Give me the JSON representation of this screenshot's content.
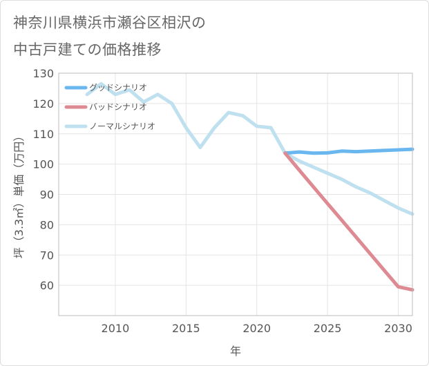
{
  "title_lines": [
    "神奈川県横浜市瀬谷区相沢の",
    "中古戸建ての価格推移"
  ],
  "chart_data": {
    "type": "line",
    "title": "神奈川県横浜市瀬谷区相沢の中古戸建ての価格推移",
    "xlabel": "年",
    "ylabel": "坪（3.3㎡）単価（万円）",
    "xlim": [
      2006,
      2031
    ],
    "ylim": [
      50,
      130
    ],
    "x_ticks": [
      2010,
      2015,
      2020,
      2025,
      2030
    ],
    "y_ticks": [
      60,
      70,
      80,
      90,
      100,
      110,
      120,
      130
    ],
    "grid": true,
    "legend_position": "top-left",
    "series": [
      {
        "name": "グッドシナリオ",
        "color": "#6ab7f0",
        "x": [
          2022,
          2023,
          2024,
          2025,
          2026,
          2027,
          2028,
          2029,
          2030,
          2031
        ],
        "values": [
          103.6,
          104.0,
          103.6,
          103.7,
          104.3,
          104.1,
          104.3,
          104.5,
          104.7,
          104.9
        ]
      },
      {
        "name": "バッドシナリオ",
        "color": "#dd8a92",
        "x": [
          2022,
          2023,
          2024,
          2025,
          2026,
          2027,
          2028,
          2029,
          2030,
          2031
        ],
        "values": [
          103.6,
          98.0,
          92.5,
          87.0,
          81.5,
          76.0,
          70.5,
          65.0,
          59.5,
          58.5
        ]
      },
      {
        "name": "ノーマルシナリオ",
        "color": "#bfe0ef",
        "x": [
          2008,
          2009,
          2010,
          2011,
          2012,
          2013,
          2014,
          2015,
          2016,
          2017,
          2018,
          2019,
          2020,
          2021,
          2022,
          2023,
          2024,
          2025,
          2026,
          2027,
          2028,
          2029,
          2030,
          2031
        ],
        "values": [
          123.0,
          126.5,
          123.0,
          124.5,
          120.5,
          123.0,
          120.0,
          112.0,
          105.5,
          112.0,
          117.0,
          116.0,
          112.5,
          112.0,
          103.6,
          101.0,
          99.0,
          97.0,
          95.0,
          92.5,
          90.5,
          88.0,
          85.5,
          83.5
        ]
      }
    ]
  }
}
